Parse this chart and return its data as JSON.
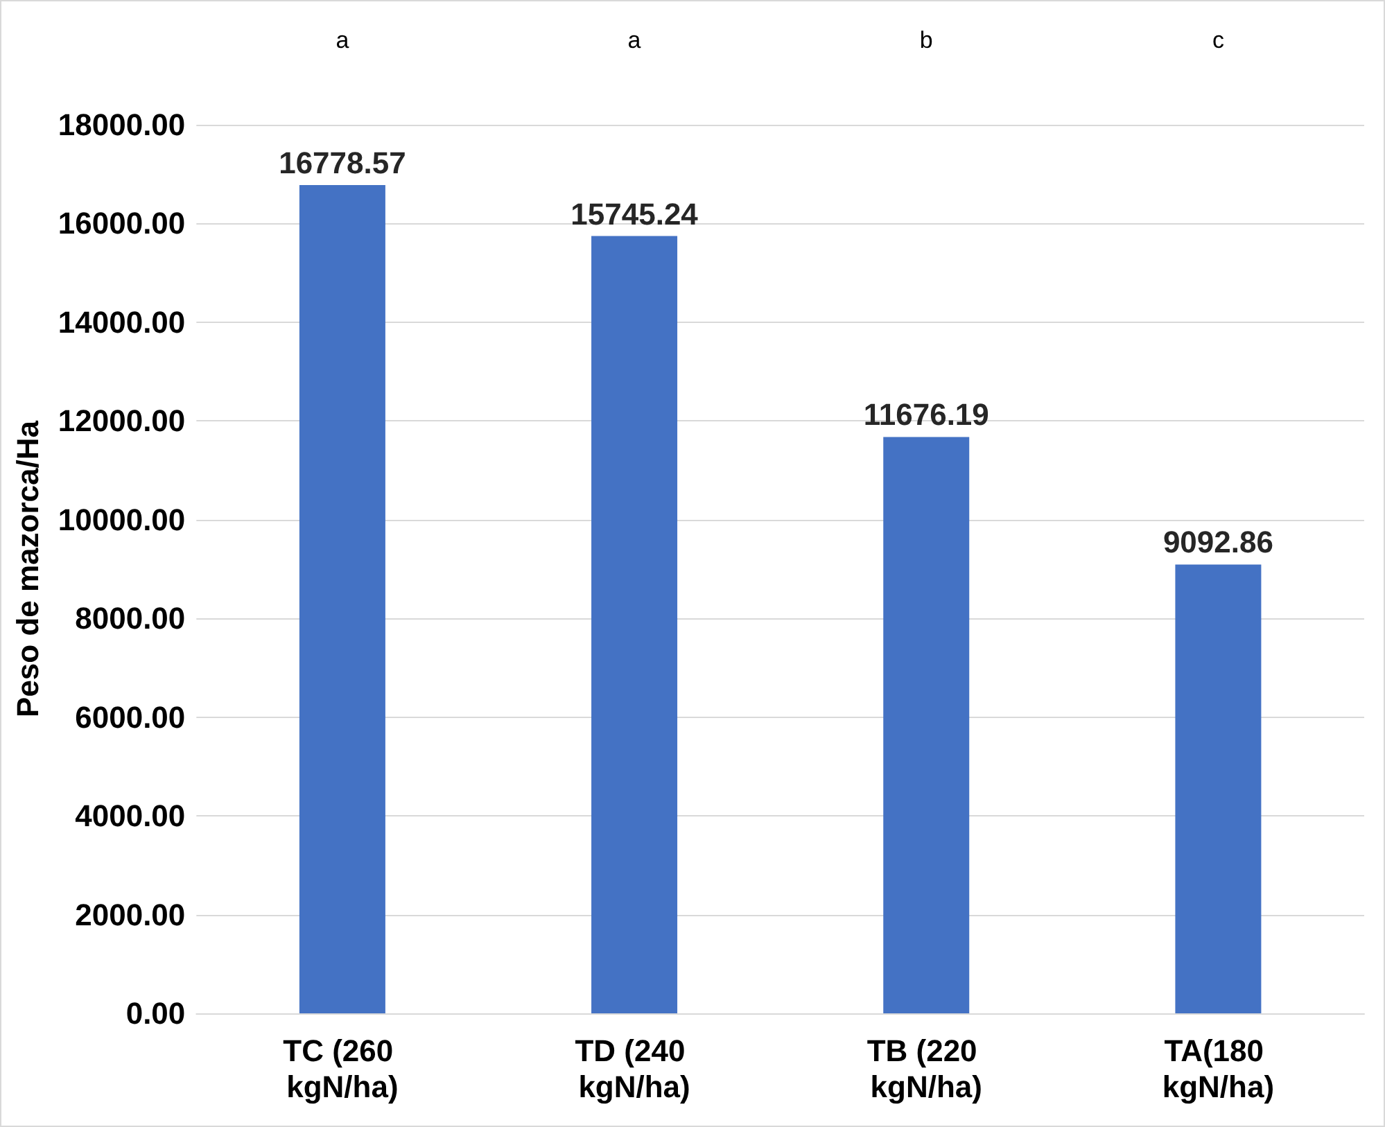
{
  "chart_data": {
    "type": "bar",
    "ylabel": "Peso de mazorca/Ha",
    "categories": [
      "TC (260 kgN/ha)",
      "TD (240 kgN/ha)",
      "TB (220 kgN/ha)",
      "TA(180 kgN/ha)"
    ],
    "values": [
      16778.57,
      15745.24,
      11676.19,
      9092.86
    ],
    "color": "#4472c4",
    "data_labels": true,
    "ylim": [
      0,
      18000
    ],
    "yticks": [
      {
        "value": 0,
        "label": "0.00"
      },
      {
        "value": 2000,
        "label": "2000.00"
      },
      {
        "value": 4000,
        "label": "4000.00"
      },
      {
        "value": 6000,
        "label": "6000.00"
      },
      {
        "value": 8000,
        "label": "8000.00"
      },
      {
        "value": 10000,
        "label": "10000.00"
      },
      {
        "value": 12000,
        "label": "12000.00"
      },
      {
        "value": 14000,
        "label": "14000.00"
      },
      {
        "value": 16000,
        "label": "16000.00"
      },
      {
        "value": 18000,
        "label": "18000.00"
      }
    ],
    "grid": "y",
    "annotations": [
      "a",
      "a",
      "b",
      "c"
    ]
  }
}
